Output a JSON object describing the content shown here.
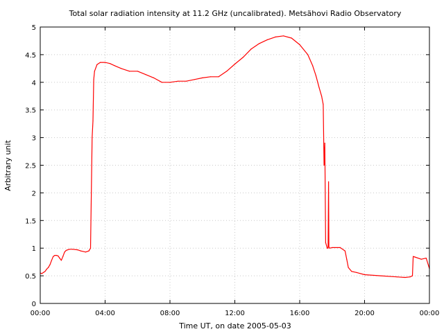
{
  "chart_data": {
    "type": "line",
    "title": "Total solar radiation intensity at 11.2 GHz (uncalibrated). Metsähovi Radio Observatory",
    "xlabel": "Time UT, on date 2005-05-03",
    "ylabel": "Arbitrary unit",
    "xlim": [
      0,
      24
    ],
    "ylim": [
      0,
      5
    ],
    "x_unit": "hours UT",
    "x_tick_labels": [
      "00:00",
      "04:00",
      "08:00",
      "12:00",
      "16:00",
      "20:00",
      "00:00"
    ],
    "y_tick_labels": [
      "0",
      "0.5",
      "1",
      "1.5",
      "2",
      "2.5",
      "3",
      "3.5",
      "4",
      "4.5",
      "5"
    ],
    "grid": true,
    "legend": "none",
    "series": [
      {
        "color": "#ff0000",
        "x": [
          0.0,
          0.1,
          0.2,
          0.3,
          0.4,
          0.5,
          0.6,
          0.7,
          0.8,
          0.9,
          1.0,
          1.1,
          1.2,
          1.3,
          1.4,
          1.5,
          1.6,
          1.7,
          1.8,
          2.0,
          2.3,
          2.5,
          2.8,
          3.0,
          3.1,
          3.2,
          3.25,
          3.3,
          3.35,
          3.5,
          3.7,
          4.0,
          4.3,
          4.6,
          5.0,
          5.5,
          6.0,
          6.5,
          7.0,
          7.5,
          8.0,
          8.5,
          9.0,
          9.5,
          10.0,
          10.5,
          11.0,
          11.5,
          12.0,
          12.5,
          13.0,
          13.5,
          14.0,
          14.5,
          15.0,
          15.5,
          16.0,
          16.5,
          16.8,
          17.0,
          17.2,
          17.35,
          17.45,
          17.5,
          17.55,
          17.6,
          17.7,
          17.75,
          17.78,
          17.8,
          17.85,
          18.0,
          18.5,
          18.8,
          18.9,
          19.0,
          19.2,
          19.5,
          20.0,
          21.0,
          22.0,
          22.5,
          22.8,
          22.95,
          23.0,
          23.1,
          23.5,
          23.8,
          24.0
        ],
        "y": [
          0.55,
          0.54,
          0.56,
          0.58,
          0.62,
          0.65,
          0.7,
          0.78,
          0.85,
          0.87,
          0.87,
          0.86,
          0.82,
          0.78,
          0.85,
          0.93,
          0.96,
          0.97,
          0.98,
          0.98,
          0.97,
          0.95,
          0.93,
          0.95,
          1.0,
          3.0,
          3.3,
          4.05,
          4.2,
          4.32,
          4.36,
          4.36,
          4.34,
          4.3,
          4.25,
          4.2,
          4.2,
          4.14,
          4.08,
          4.0,
          4.0,
          4.02,
          4.02,
          4.05,
          4.08,
          4.1,
          4.1,
          4.2,
          4.33,
          4.45,
          4.6,
          4.7,
          4.77,
          4.82,
          4.84,
          4.8,
          4.68,
          4.5,
          4.3,
          4.12,
          3.9,
          3.75,
          3.6,
          2.5,
          2.9,
          1.1,
          1.0,
          1.0,
          2.2,
          1.02,
          1.0,
          1.01,
          1.01,
          0.95,
          0.8,
          0.65,
          0.58,
          0.56,
          0.52,
          0.5,
          0.48,
          0.47,
          0.48,
          0.5,
          0.85,
          0.84,
          0.8,
          0.82,
          0.63
        ]
      }
    ]
  }
}
